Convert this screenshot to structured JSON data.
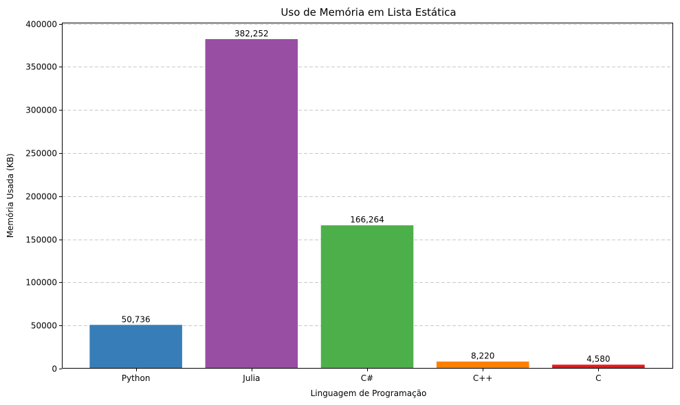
{
  "chart_data": {
    "type": "bar",
    "title": "Uso de Memória em Lista Estática",
    "xlabel": "Linguagem de Programação",
    "ylabel": "Memória Usada (KB)",
    "categories": [
      "Python",
      "Julia",
      "C#",
      "C++",
      "C"
    ],
    "values": [
      50736,
      382252,
      166264,
      8220,
      4580
    ],
    "value_labels": [
      "50,736",
      "382,252",
      "166,264",
      "8,220",
      "4,580"
    ],
    "colors": [
      "#377eb8",
      "#984ea3",
      "#4daf4a",
      "#ff7f00",
      "#e41a1c"
    ],
    "ylim": [
      0,
      401364
    ],
    "yticks": [
      0,
      50000,
      100000,
      150000,
      200000,
      250000,
      300000,
      350000,
      400000
    ],
    "ytick_labels": [
      "0",
      "50000",
      "100000",
      "150000",
      "200000",
      "250000",
      "300000",
      "350000",
      "400000"
    ],
    "grid": "y-dashed",
    "legend": "none"
  }
}
